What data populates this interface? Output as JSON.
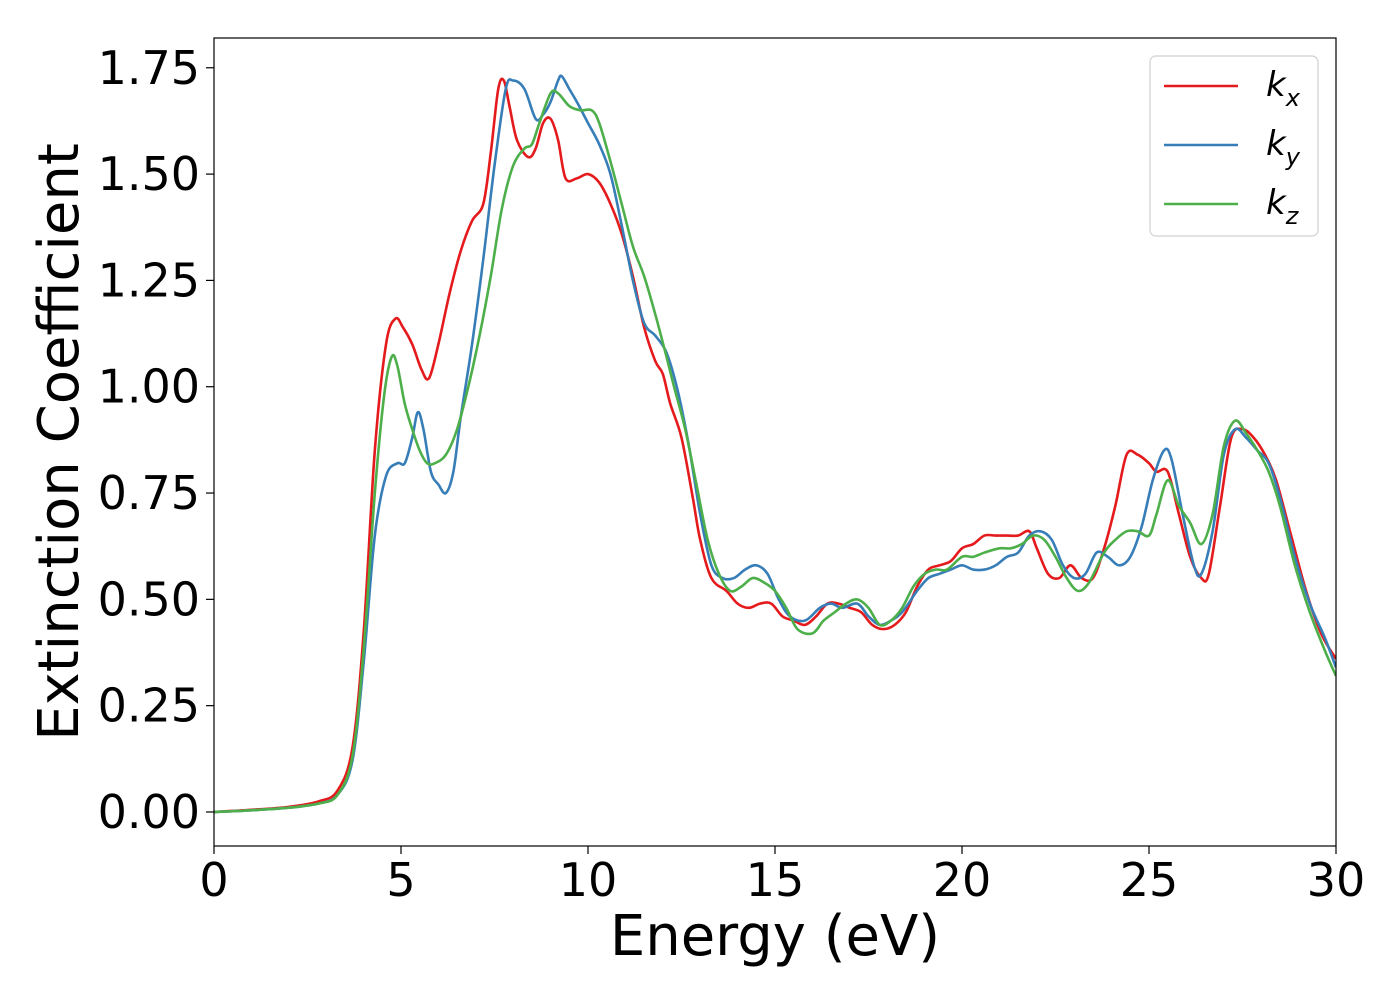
{
  "chart_data": {
    "type": "line",
    "title": "",
    "xlabel": "Energy (eV)",
    "ylabel": "Extinction Coefficient",
    "xlim": [
      0,
      30
    ],
    "ylim": [
      -0.08,
      1.82
    ],
    "xticks": [
      0,
      5,
      10,
      15,
      20,
      25,
      30
    ],
    "xtick_labels": [
      "0",
      "5",
      "10",
      "15",
      "20",
      "25",
      "30"
    ],
    "yticks": [
      0,
      0.25,
      0.5,
      0.75,
      1.0,
      1.25,
      1.5,
      1.75
    ],
    "ytick_labels": [
      "0.00",
      "0.25",
      "0.50",
      "0.75",
      "1.00",
      "1.25",
      "1.50",
      "1.75"
    ],
    "grid": false,
    "legend_position": "top-right",
    "series": [
      {
        "name": "k_x",
        "label_main": "k",
        "label_sub": "x",
        "color": "#e41a1c",
        "points": [
          [
            0,
            0
          ],
          [
            1,
            0.005
          ],
          [
            2,
            0.012
          ],
          [
            2.8,
            0.025
          ],
          [
            3.3,
            0.05
          ],
          [
            3.7,
            0.15
          ],
          [
            4.0,
            0.42
          ],
          [
            4.3,
            0.85
          ],
          [
            4.6,
            1.1
          ],
          [
            4.85,
            1.16
          ],
          [
            5.05,
            1.14
          ],
          [
            5.3,
            1.1
          ],
          [
            5.55,
            1.04
          ],
          [
            5.75,
            1.02
          ],
          [
            6.0,
            1.1
          ],
          [
            6.3,
            1.22
          ],
          [
            6.6,
            1.32
          ],
          [
            6.9,
            1.39
          ],
          [
            7.2,
            1.43
          ],
          [
            7.4,
            1.55
          ],
          [
            7.6,
            1.7
          ],
          [
            7.75,
            1.72
          ],
          [
            7.9,
            1.66
          ],
          [
            8.1,
            1.58
          ],
          [
            8.4,
            1.54
          ],
          [
            8.6,
            1.56
          ],
          [
            8.8,
            1.62
          ],
          [
            9.0,
            1.63
          ],
          [
            9.2,
            1.58
          ],
          [
            9.4,
            1.49
          ],
          [
            9.7,
            1.49
          ],
          [
            10.0,
            1.5
          ],
          [
            10.3,
            1.48
          ],
          [
            10.6,
            1.43
          ],
          [
            10.9,
            1.36
          ],
          [
            11.2,
            1.26
          ],
          [
            11.5,
            1.14
          ],
          [
            11.8,
            1.06
          ],
          [
            12.0,
            1.03
          ],
          [
            12.2,
            0.96
          ],
          [
            12.5,
            0.88
          ],
          [
            12.8,
            0.74
          ],
          [
            13.0,
            0.64
          ],
          [
            13.3,
            0.55
          ],
          [
            13.7,
            0.52
          ],
          [
            14.0,
            0.49
          ],
          [
            14.3,
            0.48
          ],
          [
            14.6,
            0.49
          ],
          [
            14.9,
            0.49
          ],
          [
            15.2,
            0.46
          ],
          [
            15.5,
            0.45
          ],
          [
            15.8,
            0.44
          ],
          [
            16.1,
            0.46
          ],
          [
            16.4,
            0.49
          ],
          [
            16.7,
            0.49
          ],
          [
            17.0,
            0.48
          ],
          [
            17.3,
            0.47
          ],
          [
            17.6,
            0.44
          ],
          [
            17.9,
            0.43
          ],
          [
            18.2,
            0.44
          ],
          [
            18.5,
            0.47
          ],
          [
            18.8,
            0.53
          ],
          [
            19.1,
            0.57
          ],
          [
            19.4,
            0.58
          ],
          [
            19.7,
            0.59
          ],
          [
            20.0,
            0.62
          ],
          [
            20.3,
            0.63
          ],
          [
            20.6,
            0.65
          ],
          [
            20.9,
            0.65
          ],
          [
            21.2,
            0.65
          ],
          [
            21.5,
            0.65
          ],
          [
            21.8,
            0.66
          ],
          [
            22.0,
            0.62
          ],
          [
            22.3,
            0.56
          ],
          [
            22.6,
            0.55
          ],
          [
            22.9,
            0.58
          ],
          [
            23.2,
            0.55
          ],
          [
            23.5,
            0.55
          ],
          [
            23.8,
            0.62
          ],
          [
            24.1,
            0.72
          ],
          [
            24.4,
            0.84
          ],
          [
            24.7,
            0.84
          ],
          [
            25.0,
            0.82
          ],
          [
            25.2,
            0.8
          ],
          [
            25.5,
            0.8
          ],
          [
            25.8,
            0.7
          ],
          [
            26.1,
            0.6
          ],
          [
            26.4,
            0.55
          ],
          [
            26.6,
            0.56
          ],
          [
            26.9,
            0.72
          ],
          [
            27.2,
            0.88
          ],
          [
            27.5,
            0.9
          ],
          [
            27.8,
            0.88
          ],
          [
            28.1,
            0.84
          ],
          [
            28.4,
            0.78
          ],
          [
            28.8,
            0.65
          ],
          [
            29.2,
            0.52
          ],
          [
            29.6,
            0.42
          ],
          [
            30.0,
            0.36
          ]
        ]
      },
      {
        "name": "k_y",
        "label_main": "k",
        "label_sub": "y",
        "color": "#377eb8",
        "points": [
          [
            0,
            0
          ],
          [
            1,
            0.004
          ],
          [
            2,
            0.01
          ],
          [
            2.8,
            0.02
          ],
          [
            3.3,
            0.04
          ],
          [
            3.7,
            0.12
          ],
          [
            4.0,
            0.35
          ],
          [
            4.3,
            0.65
          ],
          [
            4.6,
            0.79
          ],
          [
            4.9,
            0.82
          ],
          [
            5.1,
            0.82
          ],
          [
            5.3,
            0.88
          ],
          [
            5.45,
            0.94
          ],
          [
            5.6,
            0.9
          ],
          [
            5.8,
            0.8
          ],
          [
            6.0,
            0.77
          ],
          [
            6.2,
            0.75
          ],
          [
            6.4,
            0.8
          ],
          [
            6.6,
            0.93
          ],
          [
            6.9,
            1.1
          ],
          [
            7.2,
            1.3
          ],
          [
            7.5,
            1.52
          ],
          [
            7.8,
            1.7
          ],
          [
            8.0,
            1.72
          ],
          [
            8.3,
            1.7
          ],
          [
            8.6,
            1.63
          ],
          [
            8.8,
            1.64
          ],
          [
            9.0,
            1.67
          ],
          [
            9.2,
            1.72
          ],
          [
            9.3,
            1.73
          ],
          [
            9.5,
            1.7
          ],
          [
            9.7,
            1.67
          ],
          [
            10.0,
            1.62
          ],
          [
            10.3,
            1.57
          ],
          [
            10.6,
            1.5
          ],
          [
            10.9,
            1.38
          ],
          [
            11.2,
            1.25
          ],
          [
            11.5,
            1.15
          ],
          [
            11.8,
            1.12
          ],
          [
            12.1,
            1.08
          ],
          [
            12.4,
            0.99
          ],
          [
            12.7,
            0.86
          ],
          [
            13.0,
            0.7
          ],
          [
            13.3,
            0.58
          ],
          [
            13.6,
            0.55
          ],
          [
            13.9,
            0.55
          ],
          [
            14.2,
            0.57
          ],
          [
            14.5,
            0.58
          ],
          [
            14.8,
            0.56
          ],
          [
            15.1,
            0.5
          ],
          [
            15.4,
            0.46
          ],
          [
            15.8,
            0.45
          ],
          [
            16.2,
            0.48
          ],
          [
            16.5,
            0.49
          ],
          [
            16.8,
            0.48
          ],
          [
            17.2,
            0.49
          ],
          [
            17.5,
            0.46
          ],
          [
            17.8,
            0.44
          ],
          [
            18.1,
            0.45
          ],
          [
            18.4,
            0.47
          ],
          [
            18.8,
            0.52
          ],
          [
            19.1,
            0.55
          ],
          [
            19.4,
            0.56
          ],
          [
            19.7,
            0.57
          ],
          [
            20.0,
            0.58
          ],
          [
            20.3,
            0.57
          ],
          [
            20.6,
            0.57
          ],
          [
            20.9,
            0.58
          ],
          [
            21.2,
            0.6
          ],
          [
            21.5,
            0.61
          ],
          [
            21.8,
            0.65
          ],
          [
            22.1,
            0.66
          ],
          [
            22.4,
            0.64
          ],
          [
            22.7,
            0.58
          ],
          [
            23.0,
            0.55
          ],
          [
            23.3,
            0.56
          ],
          [
            23.6,
            0.61
          ],
          [
            23.9,
            0.6
          ],
          [
            24.2,
            0.58
          ],
          [
            24.5,
            0.6
          ],
          [
            24.8,
            0.67
          ],
          [
            25.1,
            0.78
          ],
          [
            25.4,
            0.85
          ],
          [
            25.6,
            0.83
          ],
          [
            25.9,
            0.7
          ],
          [
            26.2,
            0.58
          ],
          [
            26.4,
            0.56
          ],
          [
            26.7,
            0.66
          ],
          [
            27.0,
            0.84
          ],
          [
            27.3,
            0.9
          ],
          [
            27.6,
            0.88
          ],
          [
            27.9,
            0.85
          ],
          [
            28.2,
            0.82
          ],
          [
            28.5,
            0.74
          ],
          [
            28.9,
            0.6
          ],
          [
            29.3,
            0.49
          ],
          [
            29.7,
            0.41
          ],
          [
            30.0,
            0.34
          ]
        ]
      },
      {
        "name": "k_z",
        "label_main": "k",
        "label_sub": "z",
        "color": "#4daf4a",
        "points": [
          [
            0,
            0
          ],
          [
            1,
            0.004
          ],
          [
            2,
            0.01
          ],
          [
            2.8,
            0.02
          ],
          [
            3.3,
            0.04
          ],
          [
            3.7,
            0.13
          ],
          [
            4.0,
            0.38
          ],
          [
            4.3,
            0.75
          ],
          [
            4.55,
            0.98
          ],
          [
            4.75,
            1.07
          ],
          [
            4.9,
            1.05
          ],
          [
            5.1,
            0.96
          ],
          [
            5.3,
            0.9
          ],
          [
            5.5,
            0.85
          ],
          [
            5.7,
            0.82
          ],
          [
            5.9,
            0.82
          ],
          [
            6.2,
            0.84
          ],
          [
            6.5,
            0.9
          ],
          [
            6.8,
            1.0
          ],
          [
            7.1,
            1.12
          ],
          [
            7.4,
            1.26
          ],
          [
            7.7,
            1.42
          ],
          [
            8.0,
            1.52
          ],
          [
            8.3,
            1.56
          ],
          [
            8.5,
            1.57
          ],
          [
            8.7,
            1.62
          ],
          [
            9.0,
            1.69
          ],
          [
            9.2,
            1.69
          ],
          [
            9.5,
            1.66
          ],
          [
            9.8,
            1.65
          ],
          [
            10.1,
            1.65
          ],
          [
            10.3,
            1.62
          ],
          [
            10.6,
            1.53
          ],
          [
            10.9,
            1.43
          ],
          [
            11.2,
            1.33
          ],
          [
            11.5,
            1.26
          ],
          [
            11.8,
            1.17
          ],
          [
            12.1,
            1.07
          ],
          [
            12.3,
            1.0
          ],
          [
            12.6,
            0.9
          ],
          [
            12.9,
            0.77
          ],
          [
            13.2,
            0.64
          ],
          [
            13.5,
            0.56
          ],
          [
            13.8,
            0.52
          ],
          [
            14.1,
            0.53
          ],
          [
            14.4,
            0.55
          ],
          [
            14.7,
            0.54
          ],
          [
            15.0,
            0.52
          ],
          [
            15.3,
            0.48
          ],
          [
            15.6,
            0.43
          ],
          [
            16.0,
            0.42
          ],
          [
            16.3,
            0.45
          ],
          [
            16.6,
            0.47
          ],
          [
            16.9,
            0.49
          ],
          [
            17.2,
            0.5
          ],
          [
            17.5,
            0.48
          ],
          [
            17.8,
            0.44
          ],
          [
            18.1,
            0.45
          ],
          [
            18.4,
            0.48
          ],
          [
            18.7,
            0.53
          ],
          [
            19.0,
            0.56
          ],
          [
            19.3,
            0.57
          ],
          [
            19.6,
            0.57
          ],
          [
            20.0,
            0.6
          ],
          [
            20.3,
            0.6
          ],
          [
            20.6,
            0.61
          ],
          [
            21.0,
            0.62
          ],
          [
            21.3,
            0.62
          ],
          [
            21.6,
            0.63
          ],
          [
            21.9,
            0.65
          ],
          [
            22.2,
            0.64
          ],
          [
            22.5,
            0.6
          ],
          [
            22.8,
            0.55
          ],
          [
            23.1,
            0.52
          ],
          [
            23.4,
            0.54
          ],
          [
            23.8,
            0.61
          ],
          [
            24.1,
            0.64
          ],
          [
            24.4,
            0.66
          ],
          [
            24.7,
            0.66
          ],
          [
            25.0,
            0.65
          ],
          [
            25.2,
            0.7
          ],
          [
            25.5,
            0.78
          ],
          [
            25.8,
            0.72
          ],
          [
            26.1,
            0.68
          ],
          [
            26.4,
            0.63
          ],
          [
            26.7,
            0.7
          ],
          [
            27.0,
            0.86
          ],
          [
            27.3,
            0.92
          ],
          [
            27.6,
            0.89
          ],
          [
            27.9,
            0.85
          ],
          [
            28.2,
            0.8
          ],
          [
            28.5,
            0.72
          ],
          [
            28.9,
            0.58
          ],
          [
            29.3,
            0.47
          ],
          [
            29.7,
            0.38
          ],
          [
            30.0,
            0.32
          ]
        ]
      }
    ]
  }
}
